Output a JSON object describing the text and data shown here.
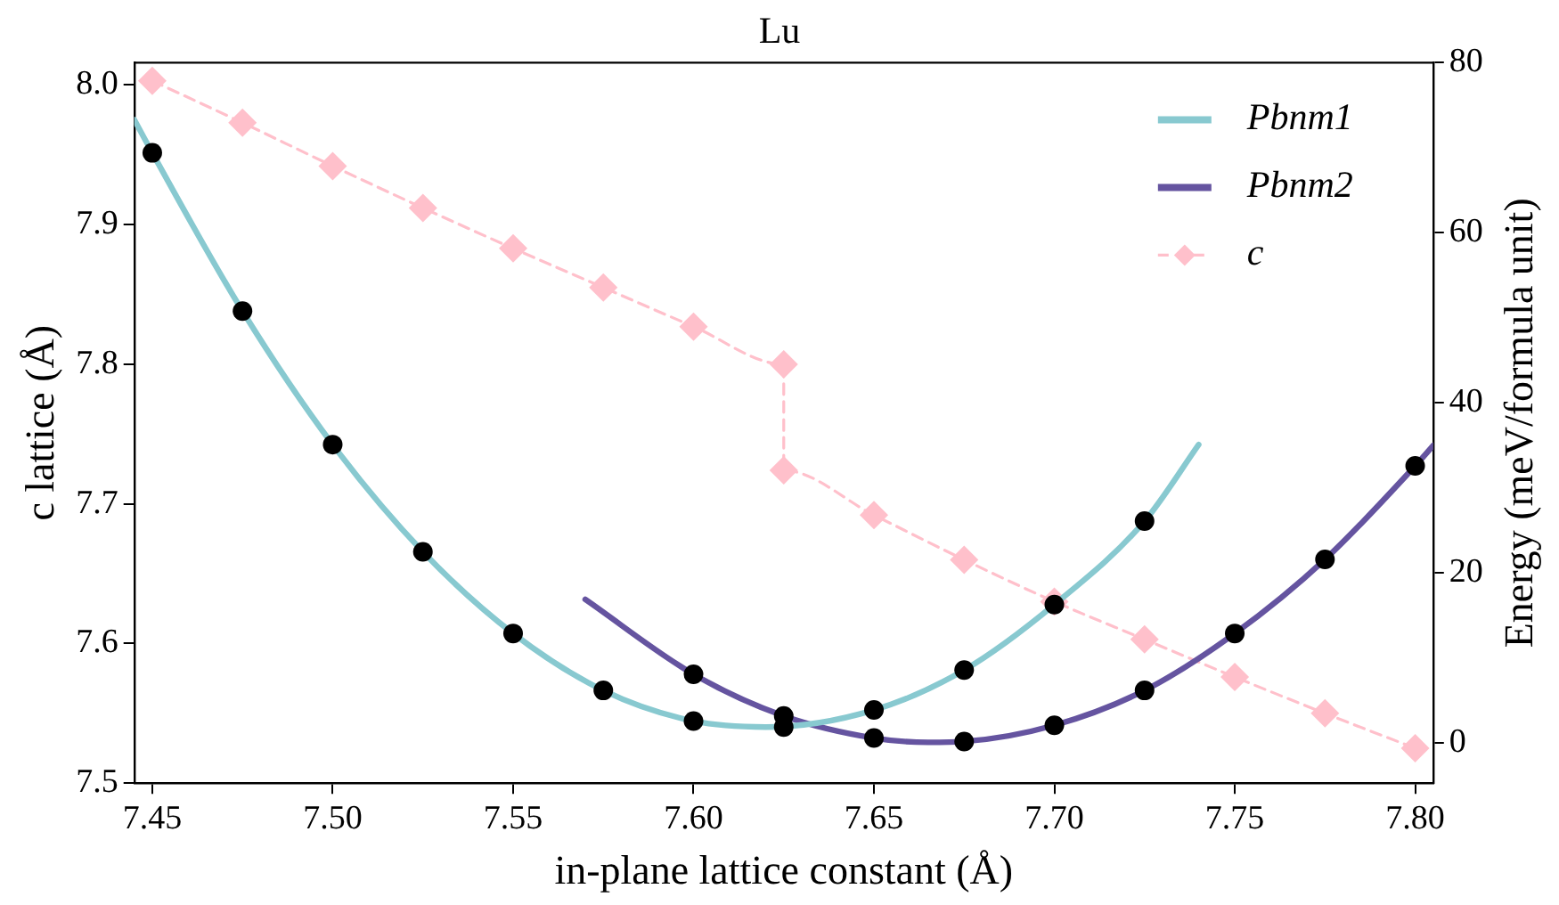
{
  "chart_data": {
    "type": "line",
    "title": "Lu",
    "xlabel": "in-plane lattice constant (Å)",
    "ylabel": "c lattice (Å)",
    "y2label": "Energy (meV/formula unit)",
    "xlim": [
      7.445,
      7.805
    ],
    "xticks": [
      7.45,
      {
        "value": 7.5,
        "label": "7.50"
      },
      7.55,
      {
        "value": 7.6,
        "label": "7.60"
      },
      7.65,
      {
        "value": 7.7,
        "label": "7.70"
      },
      7.75,
      {
        "value": 7.8,
        "label": "7.80"
      }
    ],
    "ylim": [
      7.5,
      8.016
    ],
    "yticks": [
      7.5,
      7.6,
      7.7,
      7.8,
      7.9,
      {
        "value": 8,
        "label": "8.0"
      }
    ],
    "y2lim": [
      -4.7,
      80
    ],
    "y2ticks": [
      0,
      20,
      40,
      60,
      80
    ],
    "grid": false,
    "legend": "top right",
    "series": [
      {
        "name": "Pbnm1",
        "type": "line",
        "axis": "y2",
        "color": "#88c9d0",
        "marker": "none",
        "line_style": "solid",
        "x": [
          7.445,
          7.45,
          7.475,
          7.5,
          7.525,
          7.55,
          7.575,
          7.6,
          7.62,
          7.65,
          7.675,
          7.7,
          7.725,
          7.74
        ],
        "values": [
          73.3,
          69.4,
          50.8,
          35.1,
          22.5,
          12.9,
          6.2,
          2.6,
          1.9,
          3.9,
          8.6,
          16.3,
          26.1,
          35.1
        ]
      },
      {
        "name": "Pbnm2",
        "type": "line",
        "axis": "y2",
        "color": "#6554a0",
        "marker": "none",
        "line_style": "solid",
        "x": [
          7.57,
          7.6,
          7.625,
          7.65,
          7.665,
          7.675,
          7.7,
          7.725,
          7.75,
          7.775,
          7.8,
          7.805
        ],
        "values": [
          16.9,
          8.1,
          3.2,
          0.6,
          0.1,
          0.2,
          2.1,
          6.2,
          12.9,
          21.6,
          32.6,
          35.0
        ]
      },
      {
        "name": "c",
        "type": "line",
        "axis": "y",
        "color": "#ffc0cb",
        "marker": "diamond",
        "line_style": "dashed",
        "x": [
          7.45,
          7.475,
          7.5,
          7.525,
          7.55,
          7.575,
          7.6,
          7.625,
          7.625,
          7.65,
          7.675,
          7.7,
          7.725,
          7.75,
          7.775,
          7.8
        ],
        "values": [
          8.003,
          7.973,
          7.942,
          7.912,
          7.883,
          7.855,
          7.827,
          7.8,
          7.724,
          7.692,
          7.66,
          7.63,
          7.603,
          7.576,
          7.55,
          7.525
        ]
      },
      {
        "type": "scatter",
        "axis": "y2",
        "color": "#000000",
        "marker": "circle",
        "x": [
          7.45,
          7.475,
          7.5,
          7.525,
          7.55,
          7.575,
          7.6,
          7.625,
          7.65,
          7.675,
          7.7,
          7.725
        ],
        "values": [
          69.4,
          50.8,
          35.1,
          22.5,
          12.9,
          6.2,
          2.6,
          1.9,
          3.9,
          8.6,
          16.3,
          26.1
        ]
      },
      {
        "type": "scatter",
        "axis": "y2",
        "color": "#000000",
        "marker": "circle",
        "x": [
          7.6,
          7.625,
          7.65,
          7.675,
          7.7,
          7.725,
          7.75,
          7.775,
          7.8
        ],
        "values": [
          8.1,
          3.2,
          0.6,
          0.2,
          2.1,
          6.2,
          12.9,
          21.6,
          32.6
        ]
      }
    ]
  }
}
